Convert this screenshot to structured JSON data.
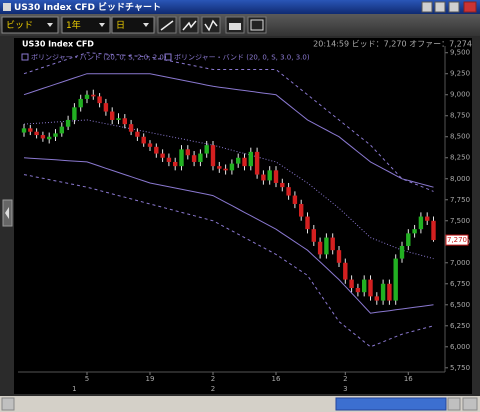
{
  "window": {
    "title": "US30 Index CFD ビッドチャート"
  },
  "toolbar": {
    "price_type": "ビッド",
    "period": "1年",
    "interval": "日"
  },
  "chart_header": {
    "symbol": "US30 Index CFD",
    "quote": "20:14:59  ビッド：7,270  オファー：7,274"
  },
  "chart_data": {
    "type": "candlestick",
    "categories": [
      null,
      null,
      null,
      null,
      null,
      null,
      null,
      null,
      null,
      null,
      "5",
      null,
      null,
      null,
      null,
      null,
      null,
      null,
      null,
      null,
      "19",
      null,
      null,
      null,
      null,
      null,
      null,
      null,
      null,
      null,
      "2",
      null,
      null,
      null,
      null,
      null,
      null,
      null,
      null,
      null,
      "16",
      null,
      null,
      null,
      null,
      null,
      null,
      null,
      null,
      null,
      null,
      "2",
      null,
      null,
      null,
      null,
      null,
      null,
      null,
      null,
      null,
      "16",
      null,
      null,
      null,
      null
    ],
    "months": [
      null,
      null,
      null,
      null,
      null,
      null,
      null,
      null,
      "1",
      null,
      null,
      null,
      null,
      null,
      null,
      null,
      null,
      null,
      null,
      null,
      null,
      null,
      null,
      null,
      null,
      null,
      null,
      null,
      null,
      null,
      "2",
      null,
      null,
      null,
      null,
      null,
      null,
      null,
      null,
      null,
      null,
      null,
      null,
      null,
      null,
      null,
      null,
      null,
      null,
      null,
      null,
      "3",
      null,
      null,
      null,
      null,
      null,
      null,
      null,
      null,
      null,
      null,
      null,
      null,
      null,
      null
    ],
    "open": [
      8550,
      8600,
      8560,
      8520,
      8470,
      8500,
      8540,
      8620,
      8700,
      8850,
      8950,
      9000,
      8980,
      8900,
      8800,
      8700,
      8720,
      8650,
      8560,
      8500,
      8420,
      8380,
      8300,
      8250,
      8200,
      8150,
      8350,
      8280,
      8200,
      8300,
      8400,
      8150,
      8120,
      8100,
      8180,
      8250,
      8150,
      8320,
      8050,
      7980,
      8100,
      7950,
      7900,
      7800,
      7700,
      7550,
      7400,
      7250,
      7100,
      7300,
      7150,
      7000,
      6800,
      6700,
      6650,
      6800,
      6600,
      6550,
      6750,
      6550,
      7050,
      7200,
      7350,
      7400,
      7550,
      7500
    ],
    "high": [
      8650,
      8640,
      8600,
      8560,
      8550,
      8590,
      8670,
      8750,
      8900,
      9000,
      9050,
      9060,
      9020,
      8950,
      8850,
      8780,
      8770,
      8700,
      8600,
      8540,
      8460,
      8420,
      8350,
      8300,
      8250,
      8400,
      8400,
      8330,
      8350,
      8450,
      8450,
      8200,
      8170,
      8230,
      8300,
      8300,
      8370,
      8370,
      8100,
      8150,
      8150,
      8000,
      7950,
      7850,
      7750,
      7600,
      7450,
      7300,
      7350,
      7350,
      7200,
      7050,
      6850,
      6750,
      6850,
      6850,
      6650,
      6800,
      6800,
      7100,
      7250,
      7400,
      7450,
      7600,
      7600,
      7550
    ],
    "low": [
      8500,
      8520,
      8480,
      8440,
      8420,
      8450,
      8500,
      8580,
      8650,
      8800,
      8900,
      8940,
      8850,
      8750,
      8650,
      8650,
      8600,
      8520,
      8450,
      8380,
      8330,
      8250,
      8200,
      8150,
      8100,
      8100,
      8230,
      8150,
      8150,
      8250,
      8100,
      8070,
      8050,
      8050,
      8130,
      8100,
      8100,
      8000,
      7930,
      7930,
      7900,
      7850,
      7750,
      7650,
      7500,
      7350,
      7200,
      7050,
      7050,
      7100,
      6950,
      6750,
      6650,
      6600,
      6600,
      6550,
      6500,
      6500,
      6500,
      6500,
      7000,
      7150,
      7300,
      7350,
      7450,
      7250
    ],
    "close": [
      8600,
      8560,
      8520,
      8480,
      8500,
      8540,
      8620,
      8700,
      8850,
      8950,
      9000,
      8980,
      8900,
      8800,
      8700,
      8720,
      8650,
      8560,
      8500,
      8420,
      8380,
      8300,
      8250,
      8200,
      8150,
      8350,
      8280,
      8200,
      8300,
      8400,
      8150,
      8120,
      8100,
      8180,
      8250,
      8150,
      8320,
      8050,
      7980,
      8100,
      7950,
      7900,
      7800,
      7700,
      7550,
      7400,
      7250,
      7100,
      7300,
      7150,
      7000,
      6800,
      6700,
      6650,
      6800,
      6600,
      6550,
      6750,
      6550,
      7050,
      7200,
      7350,
      7400,
      7550,
      7500,
      7270
    ],
    "up_color": "#22b022",
    "down_color": "#d42020",
    "wick_color": "#e8e8e8",
    "bands": [
      {
        "name": "ボリンジャー・バンド (20, 0, S, 2.0, 2.0)",
        "color": "#8a78d0",
        "dashed": false,
        "upper": [
          9000,
          9025,
          9050,
          9075,
          9100,
          9125,
          9150,
          9175,
          9200,
          9225,
          9250,
          9250,
          9250,
          9250,
          9250,
          9250,
          9250,
          9250,
          9250,
          9250,
          9250,
          9235,
          9220,
          9205,
          9190,
          9175,
          9160,
          9145,
          9130,
          9115,
          9100,
          9090,
          9080,
          9070,
          9060,
          9050,
          9040,
          9030,
          9020,
          9010,
          9000,
          8940,
          8880,
          8820,
          8760,
          8700,
          8660,
          8620,
          8580,
          8540,
          8500,
          8440,
          8380,
          8320,
          8260,
          8200,
          8160,
          8120,
          8080,
          8040,
          8000,
          7980,
          7960,
          7940,
          7920,
          7900
        ],
        "middle": [
          8650,
          8655,
          8660,
          8665,
          8670,
          8675,
          8680,
          8685,
          8690,
          8695,
          8700,
          8685,
          8670,
          8655,
          8640,
          8625,
          8610,
          8595,
          8580,
          8565,
          8550,
          8535,
          8520,
          8505,
          8490,
          8475,
          8460,
          8445,
          8430,
          8415,
          8400,
          8380,
          8360,
          8340,
          8320,
          8300,
          8280,
          8260,
          8240,
          8220,
          8200,
          8150,
          8100,
          8050,
          8000,
          7950,
          7890,
          7830,
          7770,
          7710,
          7650,
          7580,
          7510,
          7440,
          7370,
          7300,
          7270,
          7240,
          7210,
          7180,
          7150,
          7130,
          7110,
          7090,
          7070,
          7050
        ],
        "lower": [
          8250,
          8245,
          8240,
          8235,
          8230,
          8225,
          8220,
          8215,
          8210,
          8205,
          8200,
          8175,
          8150,
          8125,
          8100,
          8075,
          8050,
          8025,
          8000,
          7975,
          7950,
          7935,
          7920,
          7905,
          7890,
          7875,
          7860,
          7845,
          7830,
          7815,
          7800,
          7760,
          7720,
          7680,
          7640,
          7600,
          7560,
          7520,
          7480,
          7440,
          7400,
          7350,
          7300,
          7250,
          7200,
          7150,
          7080,
          7010,
          6940,
          6870,
          6800,
          6720,
          6640,
          6560,
          6480,
          6400,
          6410,
          6420,
          6430,
          6440,
          6450,
          6460,
          6470,
          6480,
          6490,
          6500
        ]
      },
      {
        "name": "ボリンジャー・バンド (20, 0, S, 3.0, 3.0)",
        "color": "#8a78d0",
        "dashed": true,
        "upper": [
          9250,
          9275,
          9300,
          9325,
          9350,
          9375,
          9400,
          9425,
          9450,
          9475,
          9500,
          9495,
          9490,
          9485,
          9480,
          9475,
          9470,
          9465,
          9460,
          9455,
          9450,
          9435,
          9420,
          9405,
          9390,
          9375,
          9360,
          9345,
          9330,
          9315,
          9300,
          9300,
          9300,
          9300,
          9300,
          9300,
          9300,
          9300,
          9300,
          9300,
          9300,
          9240,
          9180,
          9120,
          9060,
          9000,
          8940,
          8880,
          8820,
          8760,
          8700,
          8640,
          8580,
          8520,
          8460,
          8400,
          8320,
          8240,
          8160,
          8080,
          8000,
          7970,
          7940,
          7910,
          7880,
          7850
        ],
        "lower": [
          8050,
          8035,
          8020,
          8005,
          7990,
          7975,
          7960,
          7945,
          7930,
          7915,
          7900,
          7880,
          7860,
          7840,
          7820,
          7800,
          7780,
          7760,
          7740,
          7720,
          7700,
          7680,
          7660,
          7640,
          7620,
          7600,
          7580,
          7560,
          7540,
          7520,
          7500,
          7460,
          7420,
          7380,
          7340,
          7300,
          7260,
          7220,
          7180,
          7140,
          7100,
          7050,
          7000,
          6950,
          6900,
          6850,
          6740,
          6630,
          6520,
          6410,
          6300,
          6240,
          6180,
          6120,
          6060,
          6000,
          6030,
          6060,
          6090,
          6120,
          6150,
          6170,
          6190,
          6210,
          6230,
          6250
        ]
      }
    ],
    "ylim": [
      5700,
      9580
    ],
    "yticks": [
      {
        "value": 5750,
        "label": "5,750"
      },
      {
        "value": 6000,
        "label": "6,000"
      },
      {
        "value": 6250,
        "label": "6,250"
      },
      {
        "value": 6500,
        "label": "6,500"
      },
      {
        "value": 6750,
        "label": "6,750"
      },
      {
        "value": 7000,
        "label": "7,000"
      },
      {
        "value": 7250,
        "label": "7,250"
      },
      {
        "value": 7500,
        "label": "7,500"
      },
      {
        "value": 7750,
        "label": "7,750"
      },
      {
        "value": 8000,
        "label": "8,000"
      },
      {
        "value": 8250,
        "label": "8,250"
      },
      {
        "value": 8500,
        "label": "8,500"
      },
      {
        "value": 8750,
        "label": "8,750"
      },
      {
        "value": 9000,
        "label": "9,000"
      },
      {
        "value": 9250,
        "label": "9,250"
      },
      {
        "value": 9500,
        "label": "9,500"
      }
    ],
    "last_price": {
      "value": 7270,
      "label": "7,270"
    },
    "last_price_color": "#c81818",
    "grid": false
  }
}
